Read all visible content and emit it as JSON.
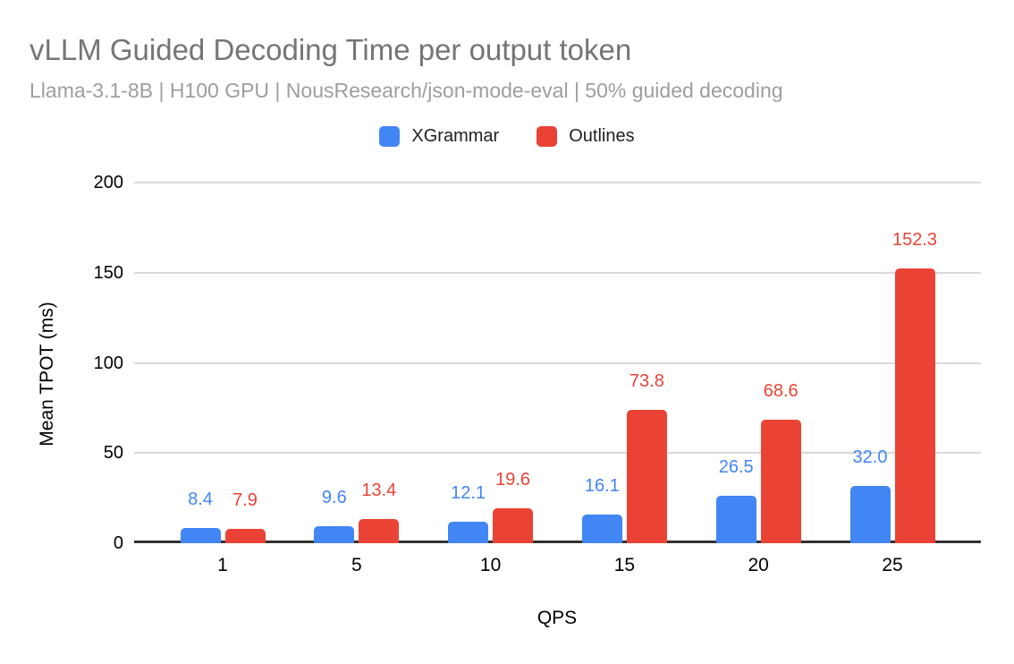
{
  "header": {
    "title": "vLLM Guided Decoding Time per output token",
    "subtitle": "Llama-3.1-8B | H100 GPU | NousResearch/json-mode-eval | 50% guided decoding"
  },
  "chart_data": {
    "type": "bar",
    "title": "vLLM Guided Decoding Time per output token",
    "subtitle": "Llama-3.1-8B | H100 GPU | NousResearch/json-mode-eval | 50% guided decoding",
    "categories": [
      "1",
      "5",
      "10",
      "15",
      "20",
      "25"
    ],
    "xlabel": "QPS",
    "ylabel": "Mean TPOT (ms)",
    "ylim": [
      0,
      200
    ],
    "yticks": [
      {
        "value": 0,
        "label": "0"
      },
      {
        "value": 50,
        "label": "50"
      },
      {
        "value": 100,
        "label": "100"
      },
      {
        "value": 150,
        "label": "150"
      },
      {
        "value": 200,
        "label": "200"
      }
    ],
    "grid": true,
    "legend_position": "top",
    "data_labels_shown": true,
    "series": [
      {
        "name": "XGrammar",
        "color": "#4285F4",
        "values": [
          8.4,
          9.6,
          12.1,
          16.1,
          26.5,
          32.0
        ],
        "labels": [
          "8.4",
          "9.6",
          "12.1",
          "16.1",
          "26.5",
          "32.0"
        ]
      },
      {
        "name": "Outlines",
        "color": "#EA4335",
        "values": [
          7.9,
          13.4,
          19.6,
          73.8,
          68.6,
          152.3
        ],
        "labels": [
          "7.9",
          "13.4",
          "19.6",
          "73.8",
          "68.6",
          "152.3"
        ]
      }
    ]
  },
  "colors": {
    "background": "#ffffff",
    "title_text": "#757575",
    "subtitle_text": "#9e9e9e",
    "tick_text": "#000000",
    "gridline": "#d9d9d9",
    "axis_line": "#333333"
  }
}
